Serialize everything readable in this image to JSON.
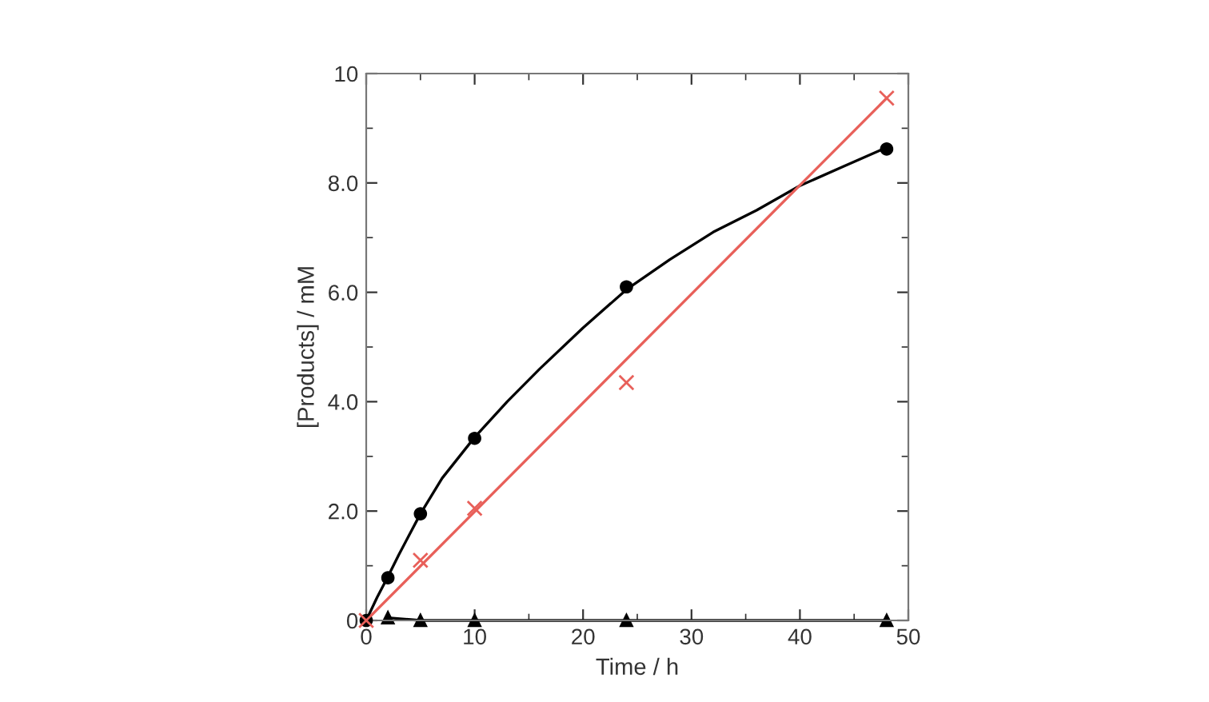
{
  "chart_data": {
    "type": "scatter",
    "xlabel": "Time / h",
    "ylabel": "[Products] / mM",
    "xlim": [
      0,
      50
    ],
    "ylim": [
      0,
      10
    ],
    "xticks": [
      0,
      10,
      20,
      30,
      40,
      50
    ],
    "yticks": [
      0,
      {
        "value": 2,
        "label": "2.0"
      },
      {
        "value": 4,
        "label": "4.0"
      },
      {
        "value": 6,
        "label": "6.0"
      },
      {
        "value": 8,
        "label": "8.0"
      },
      10
    ],
    "grid": false,
    "legend": false,
    "series": [
      {
        "type": "line",
        "color": "#000000",
        "marker": "none",
        "x": [
          0,
          1,
          2,
          3,
          5,
          7,
          10,
          13,
          16,
          20,
          24,
          28,
          32,
          36,
          40,
          44,
          48
        ],
        "values": [
          0,
          0.42,
          0.8,
          1.2,
          1.95,
          2.6,
          3.35,
          4.0,
          4.6,
          5.35,
          6.05,
          6.6,
          7.1,
          7.5,
          7.95,
          8.3,
          8.65
        ]
      },
      {
        "type": "line",
        "color": "#e8605a",
        "marker": "none",
        "x": [
          0,
          48
        ],
        "values": [
          0,
          9.55
        ]
      },
      {
        "color": "#000000",
        "marker": "circle",
        "x": [
          0,
          2,
          5,
          10,
          24,
          48
        ],
        "values": [
          0,
          0.78,
          1.95,
          3.33,
          6.1,
          8.62
        ]
      },
      {
        "color": "#e8605a",
        "marker": "cross",
        "x": [
          0,
          5,
          10,
          24,
          48
        ],
        "values": [
          0,
          1.1,
          2.05,
          4.35,
          9.55
        ]
      },
      {
        "type": "line",
        "color": "#000000",
        "marker": "triangle",
        "x": [
          2,
          5,
          10,
          24,
          48
        ],
        "values": [
          0.05,
          0,
          0,
          0,
          0
        ]
      }
    ]
  }
}
